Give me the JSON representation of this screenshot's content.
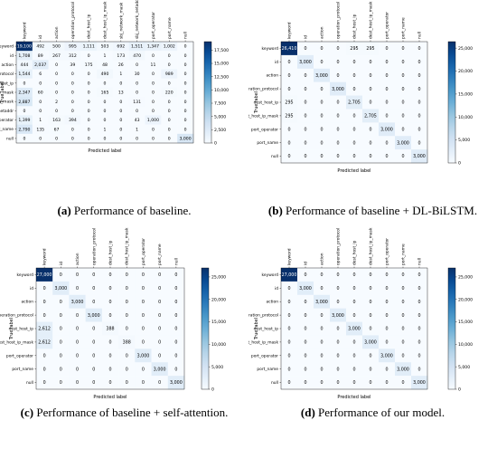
{
  "chart_data": [
    {
      "type": "heatmap",
      "caption_id": "(a)",
      "caption_text": "Performance of baseline.",
      "xlabel": "Predicted label",
      "ylabel": "True label",
      "labels": [
        "keyword",
        "id",
        "action",
        "operation_protocol",
        "dest_host_ip",
        "dest_host_ip_mask",
        "sbj_network_mask",
        "sbj_network_netaddr",
        "port_operator",
        "port_name",
        "null"
      ],
      "matrix": [
        [
          19100,
          492,
          500,
          995,
          1111,
          503,
          692,
          1511,
          1347,
          1002,
          0
        ],
        [
          1708,
          89,
          267,
          312,
          0,
          1,
          173,
          470,
          0,
          0,
          0
        ],
        [
          444,
          2037,
          0,
          39,
          175,
          48,
          26,
          0,
          11,
          0,
          0
        ],
        [
          1544,
          6,
          0,
          0,
          0,
          490,
          1,
          30,
          0,
          989,
          0
        ],
        [
          0,
          0,
          0,
          0,
          0,
          0,
          0,
          0,
          0,
          0,
          0
        ],
        [
          2347,
          60,
          0,
          0,
          0,
          165,
          13,
          0,
          0,
          220,
          0
        ],
        [
          2887,
          0,
          2,
          0,
          0,
          0,
          0,
          131,
          0,
          0,
          0
        ],
        [
          0,
          0,
          0,
          0,
          0,
          0,
          0,
          0,
          0,
          0,
          0
        ],
        [
          1399,
          1,
          163,
          394,
          0,
          0,
          0,
          43,
          1000,
          0,
          0
        ],
        [
          2790,
          135,
          67,
          0,
          0,
          1,
          0,
          1,
          0,
          0,
          0
        ],
        [
          0,
          0,
          0,
          0,
          0,
          0,
          0,
          0,
          0,
          0,
          3000
        ]
      ],
      "cell_labels": [
        [
          "19,100",
          "492",
          "500",
          "995",
          "1,111",
          "503",
          "692",
          "1,511",
          "1,347",
          "1,002",
          "0"
        ],
        [
          "1,708",
          "89",
          "267",
          "312",
          "0",
          "1",
          "173",
          "470",
          "0",
          "0",
          "0"
        ],
        [
          "444",
          "2,037",
          "0",
          "39",
          "175",
          "48",
          "26",
          "0",
          "11",
          "0",
          "0"
        ],
        [
          "1,544",
          "6",
          "0",
          "0",
          "0",
          "490",
          "1",
          "30",
          "0",
          "989",
          "0"
        ],
        [
          "0",
          "0",
          "0",
          "0",
          "0",
          "0",
          "0",
          "0",
          "0",
          "0",
          "0"
        ],
        [
          "2,347",
          "60",
          "0",
          "0",
          "0",
          "165",
          "13",
          "0",
          "0",
          "220",
          "0"
        ],
        [
          "2,887",
          "0",
          "2",
          "0",
          "0",
          "0",
          "0",
          "131",
          "0",
          "0",
          "0"
        ],
        [
          "0",
          "0",
          "0",
          "0",
          "0",
          "0",
          "0",
          "0",
          "0",
          "0",
          "0"
        ],
        [
          "1,399",
          "1",
          "163",
          "394",
          "0",
          "0",
          "0",
          "43",
          "1,000",
          "0",
          "0"
        ],
        [
          "2,790",
          "135",
          "67",
          "0",
          "0",
          "1",
          "0",
          "1",
          "0",
          "0",
          "0"
        ],
        [
          "0",
          "0",
          "0",
          "0",
          "0",
          "0",
          "0",
          "0",
          "0",
          "0",
          "3,000"
        ]
      ],
      "vmax": 19100,
      "colorbar_ticks": [
        0,
        2500,
        5000,
        7500,
        10000,
        12500,
        15000,
        17500
      ],
      "colorbar_labels": [
        "0",
        "2,500",
        "5,000",
        "7,500",
        "10,000",
        "12,500",
        "15,000",
        "17,500"
      ]
    },
    {
      "type": "heatmap",
      "caption_id": "(b)",
      "caption_text": "Performance of baseline + DL-BiLSTM.",
      "xlabel": "Predicted label",
      "ylabel": "True label",
      "labels": [
        "keyword",
        "id",
        "action",
        "operation_protocol",
        "dest_host_ip",
        "dest_host_ip_mask",
        "port_operator",
        "port_name",
        "null"
      ],
      "matrix": [
        [
          26410,
          0,
          0,
          0,
          295,
          295,
          0,
          0,
          0
        ],
        [
          0,
          3000,
          0,
          0,
          0,
          0,
          0,
          0,
          0
        ],
        [
          0,
          0,
          3000,
          0,
          0,
          0,
          0,
          0,
          0
        ],
        [
          0,
          0,
          0,
          3000,
          0,
          0,
          0,
          0,
          0
        ],
        [
          295,
          0,
          0,
          0,
          2705,
          0,
          0,
          0,
          0
        ],
        [
          295,
          0,
          0,
          0,
          0,
          2705,
          0,
          0,
          0
        ],
        [
          0,
          0,
          0,
          0,
          0,
          0,
          3000,
          0,
          0
        ],
        [
          0,
          0,
          0,
          0,
          0,
          0,
          0,
          3000,
          0
        ],
        [
          0,
          0,
          0,
          0,
          0,
          0,
          0,
          0,
          3000
        ]
      ],
      "cell_labels": [
        [
          "26,410",
          "0",
          "0",
          "0",
          "295",
          "295",
          "0",
          "0",
          "0"
        ],
        [
          "0",
          "3,000",
          "0",
          "0",
          "0",
          "0",
          "0",
          "0",
          "0"
        ],
        [
          "0",
          "0",
          "3,000",
          "0",
          "0",
          "0",
          "0",
          "0",
          "0"
        ],
        [
          "0",
          "0",
          "0",
          "3,000",
          "0",
          "0",
          "0",
          "0",
          "0"
        ],
        [
          "295",
          "0",
          "0",
          "0",
          "2,705",
          "0",
          "0",
          "0",
          "0"
        ],
        [
          "295",
          "0",
          "0",
          "0",
          "0",
          "2,705",
          "0",
          "0",
          "0"
        ],
        [
          "0",
          "0",
          "0",
          "0",
          "0",
          "0",
          "3,000",
          "0",
          "0"
        ],
        [
          "0",
          "0",
          "0",
          "0",
          "0",
          "0",
          "0",
          "3,000",
          "0"
        ],
        [
          "0",
          "0",
          "0",
          "0",
          "0",
          "0",
          "0",
          "0",
          "3,000"
        ]
      ],
      "vmax": 26410,
      "colorbar_ticks": [
        0,
        5000,
        10000,
        15000,
        20000,
        25000
      ],
      "colorbar_labels": [
        "0",
        "5,000",
        "10,000",
        "15,000",
        "20,000",
        "25,000"
      ]
    },
    {
      "type": "heatmap",
      "caption_id": "(c)",
      "caption_text": "Performance of baseline + self-attention.",
      "xlabel": "Predicted label",
      "ylabel": "True label",
      "labels": [
        "keyword",
        "id",
        "action",
        "operation_protocol",
        "dest_host_ip",
        "dest_host_ip_mask",
        "port_operator",
        "port_name",
        "null"
      ],
      "matrix": [
        [
          27000,
          0,
          0,
          0,
          0,
          0,
          0,
          0,
          0
        ],
        [
          0,
          3000,
          0,
          0,
          0,
          0,
          0,
          0,
          0
        ],
        [
          0,
          0,
          3000,
          0,
          0,
          0,
          0,
          0,
          0
        ],
        [
          0,
          0,
          0,
          3000,
          0,
          0,
          0,
          0,
          0
        ],
        [
          2612,
          0,
          0,
          0,
          388,
          0,
          0,
          0,
          0
        ],
        [
          2612,
          0,
          0,
          0,
          0,
          388,
          0,
          0,
          0
        ],
        [
          0,
          0,
          0,
          0,
          0,
          0,
          3000,
          0,
          0
        ],
        [
          0,
          0,
          0,
          0,
          0,
          0,
          0,
          3000,
          0
        ],
        [
          0,
          0,
          0,
          0,
          0,
          0,
          0,
          0,
          3000
        ]
      ],
      "cell_labels": [
        [
          "27,000",
          "0",
          "0",
          "0",
          "0",
          "0",
          "0",
          "0",
          "0"
        ],
        [
          "0",
          "3,000",
          "0",
          "0",
          "0",
          "0",
          "0",
          "0",
          "0"
        ],
        [
          "0",
          "0",
          "3,000",
          "0",
          "0",
          "0",
          "0",
          "0",
          "0"
        ],
        [
          "0",
          "0",
          "0",
          "3,000",
          "0",
          "0",
          "0",
          "0",
          "0"
        ],
        [
          "2,612",
          "0",
          "0",
          "0",
          "388",
          "0",
          "0",
          "0",
          "0"
        ],
        [
          "2,612",
          "0",
          "0",
          "0",
          "0",
          "388",
          "0",
          "0",
          "0"
        ],
        [
          "0",
          "0",
          "0",
          "0",
          "0",
          "0",
          "3,000",
          "0",
          "0"
        ],
        [
          "0",
          "0",
          "0",
          "0",
          "0",
          "0",
          "0",
          "3,000",
          "0"
        ],
        [
          "0",
          "0",
          "0",
          "0",
          "0",
          "0",
          "0",
          "0",
          "3,000"
        ]
      ],
      "vmax": 27000,
      "colorbar_ticks": [
        0,
        5000,
        10000,
        15000,
        20000,
        25000
      ],
      "colorbar_labels": [
        "0",
        "5,000",
        "10,000",
        "15,000",
        "20,000",
        "25,000"
      ]
    },
    {
      "type": "heatmap",
      "caption_id": "(d)",
      "caption_text": "Performance of our model.",
      "xlabel": "Predicted label",
      "ylabel": "True label",
      "labels": [
        "keyword",
        "id",
        "action",
        "operation_protocol",
        "dest_host_ip",
        "dest_host_ip_mask",
        "port_operator",
        "port_name",
        "null"
      ],
      "matrix": [
        [
          27000,
          0,
          0,
          0,
          0,
          0,
          0,
          0,
          0
        ],
        [
          0,
          3000,
          0,
          0,
          0,
          0,
          0,
          0,
          0
        ],
        [
          0,
          0,
          3000,
          0,
          0,
          0,
          0,
          0,
          0
        ],
        [
          0,
          0,
          0,
          3000,
          0,
          0,
          0,
          0,
          0
        ],
        [
          0,
          0,
          0,
          0,
          3000,
          0,
          0,
          0,
          0
        ],
        [
          0,
          0,
          0,
          0,
          0,
          3000,
          0,
          0,
          0
        ],
        [
          0,
          0,
          0,
          0,
          0,
          0,
          3000,
          0,
          0
        ],
        [
          0,
          0,
          0,
          0,
          0,
          0,
          0,
          3000,
          0
        ],
        [
          0,
          0,
          0,
          0,
          0,
          0,
          0,
          0,
          3000
        ]
      ],
      "cell_labels": [
        [
          "27,000",
          "0",
          "0",
          "0",
          "0",
          "0",
          "0",
          "0",
          "0"
        ],
        [
          "0",
          "3,000",
          "0",
          "0",
          "0",
          "0",
          "0",
          "0",
          "0"
        ],
        [
          "0",
          "0",
          "3,000",
          "0",
          "0",
          "0",
          "0",
          "0",
          "0"
        ],
        [
          "0",
          "0",
          "0",
          "3,000",
          "0",
          "0",
          "0",
          "0",
          "0"
        ],
        [
          "0",
          "0",
          "0",
          "0",
          "3,000",
          "0",
          "0",
          "0",
          "0"
        ],
        [
          "0",
          "0",
          "0",
          "0",
          "0",
          "3,000",
          "0",
          "0",
          "0"
        ],
        [
          "0",
          "0",
          "0",
          "0",
          "0",
          "0",
          "3,000",
          "0",
          "0"
        ],
        [
          "0",
          "0",
          "0",
          "0",
          "0",
          "0",
          "0",
          "3,000",
          "0"
        ],
        [
          "0",
          "0",
          "0",
          "0",
          "0",
          "0",
          "0",
          "0",
          "3,000"
        ]
      ],
      "vmax": 27000,
      "colorbar_ticks": [
        0,
        5000,
        10000,
        15000,
        20000,
        25000
      ],
      "colorbar_labels": [
        "0",
        "5,000",
        "10,000",
        "15,000",
        "20,000",
        "25,000"
      ]
    }
  ]
}
